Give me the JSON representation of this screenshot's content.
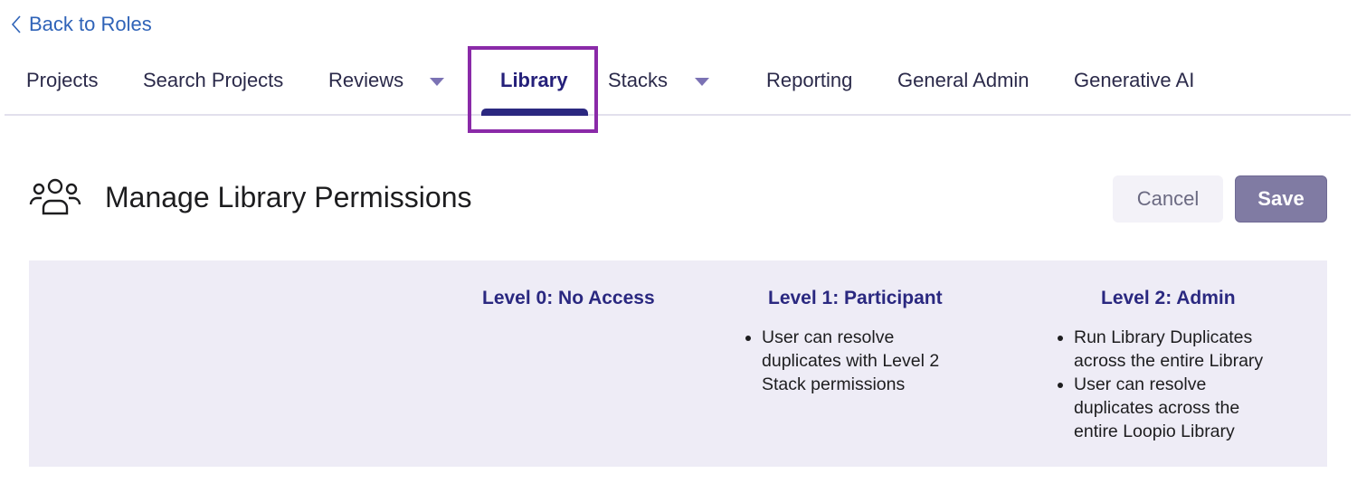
{
  "back_link": "Back to Roles",
  "tabs": [
    {
      "label": "Projects"
    },
    {
      "label": "Search Projects"
    },
    {
      "label": "Reviews",
      "dropdown": true
    },
    {
      "label": "Library",
      "active": true
    },
    {
      "label": "Stacks",
      "dropdown": true
    },
    {
      "label": "Reporting"
    },
    {
      "label": "General Admin"
    },
    {
      "label": "Generative AI"
    }
  ],
  "page": {
    "title": "Manage Library Permissions",
    "icon": "users-icon",
    "cancel": "Cancel",
    "save": "Save"
  },
  "levels": [
    {
      "title": "Level 0: No Access",
      "items": []
    },
    {
      "title": "Level 1: Participant",
      "items": [
        "User can resolve duplicates with Level 2 Stack permissions"
      ]
    },
    {
      "title": "Level 2: Admin",
      "items": [
        "Run Library Duplicates across the entire Library",
        "User can resolve duplicates across the entire Loopio Library"
      ]
    }
  ],
  "colors": {
    "accent": "#2b2880",
    "highlight": "#8a2aa8",
    "panel": "#eeecf6",
    "save": "#807ba3"
  }
}
